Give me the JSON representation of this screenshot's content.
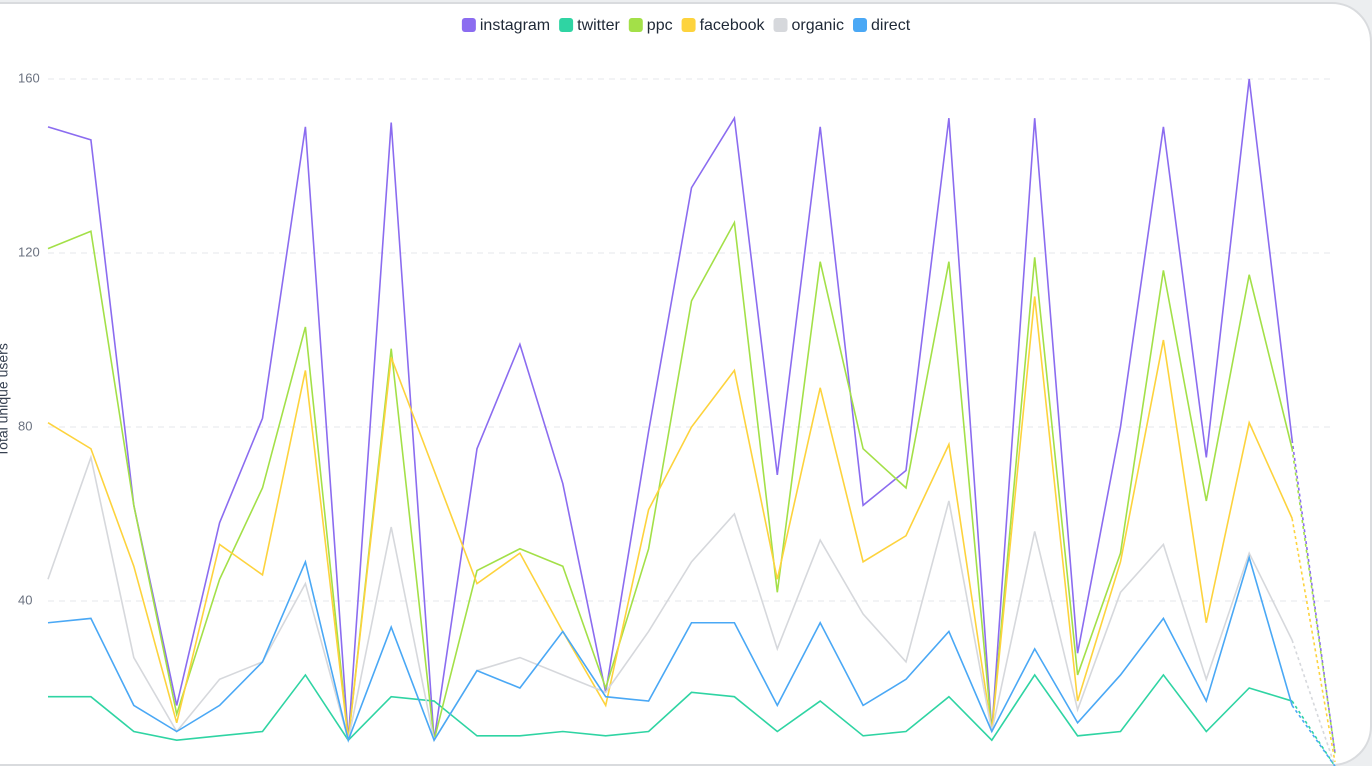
{
  "chart_data": {
    "type": "line",
    "y_label": "Total unique users",
    "categories": [
      null,
      null,
      null,
      null,
      null,
      null,
      null,
      null,
      null,
      null,
      null,
      null,
      null,
      null,
      null,
      null,
      null,
      null,
      null,
      null,
      null,
      null,
      null,
      null,
      null,
      null,
      null,
      null,
      null,
      null,
      null
    ],
    "series": [
      {
        "name": "instagram",
        "color": "#8b6cf0",
        "values": [
          149,
          146,
          62,
          16,
          58,
          82,
          149,
          8,
          150,
          8,
          75,
          99,
          67,
          19,
          79,
          135,
          151,
          69,
          149,
          62,
          70,
          151,
          10,
          151,
          28,
          80,
          149,
          73,
          160,
          77,
          5
        ]
      },
      {
        "name": "twitter",
        "color": "#2fd4a3",
        "values": [
          18,
          18,
          10,
          8,
          9,
          10,
          23,
          8,
          18,
          17,
          9,
          9,
          10,
          9,
          10,
          19,
          18,
          10,
          17,
          9,
          10,
          18,
          8,
          23,
          9,
          10,
          23,
          10,
          20,
          17,
          2
        ]
      },
      {
        "name": "ppc",
        "color": "#a3e048",
        "values": [
          121,
          125,
          62,
          14,
          45,
          66,
          103,
          8,
          98,
          8,
          47,
          52,
          48,
          20,
          52,
          109,
          127,
          42,
          118,
          75,
          66,
          118,
          10,
          119,
          23,
          51,
          116,
          63,
          115,
          75,
          5
        ]
      },
      {
        "name": "facebook",
        "color": "#fdd33d",
        "values": [
          81,
          75,
          48,
          12,
          53,
          46,
          93,
          8,
          96,
          70,
          44,
          51,
          33,
          16,
          61,
          80,
          93,
          45,
          89,
          49,
          55,
          76,
          10,
          110,
          17,
          49,
          100,
          35,
          81,
          59,
          3
        ]
      },
      {
        "name": "organic",
        "color": "#d6d8dc",
        "values": [
          45,
          73,
          27,
          10,
          22,
          26,
          44,
          8,
          57,
          8,
          24,
          27,
          23,
          19,
          33,
          49,
          60,
          29,
          54,
          37,
          26,
          63,
          10,
          56,
          15,
          42,
          53,
          22,
          51,
          31,
          2
        ]
      },
      {
        "name": "direct",
        "color": "#4aa8f5",
        "values": [
          35,
          36,
          16,
          10,
          16,
          26,
          49,
          8,
          34,
          8,
          24,
          20,
          33,
          18,
          17,
          35,
          35,
          16,
          35,
          16,
          22,
          33,
          10,
          29,
          12,
          23,
          36,
          17,
          50,
          16,
          2
        ]
      }
    ],
    "ylim": [
      0,
      160
    ],
    "yticks": [
      40,
      80,
      120,
      160
    ],
    "grid": true,
    "dashed_last_segment": true
  }
}
